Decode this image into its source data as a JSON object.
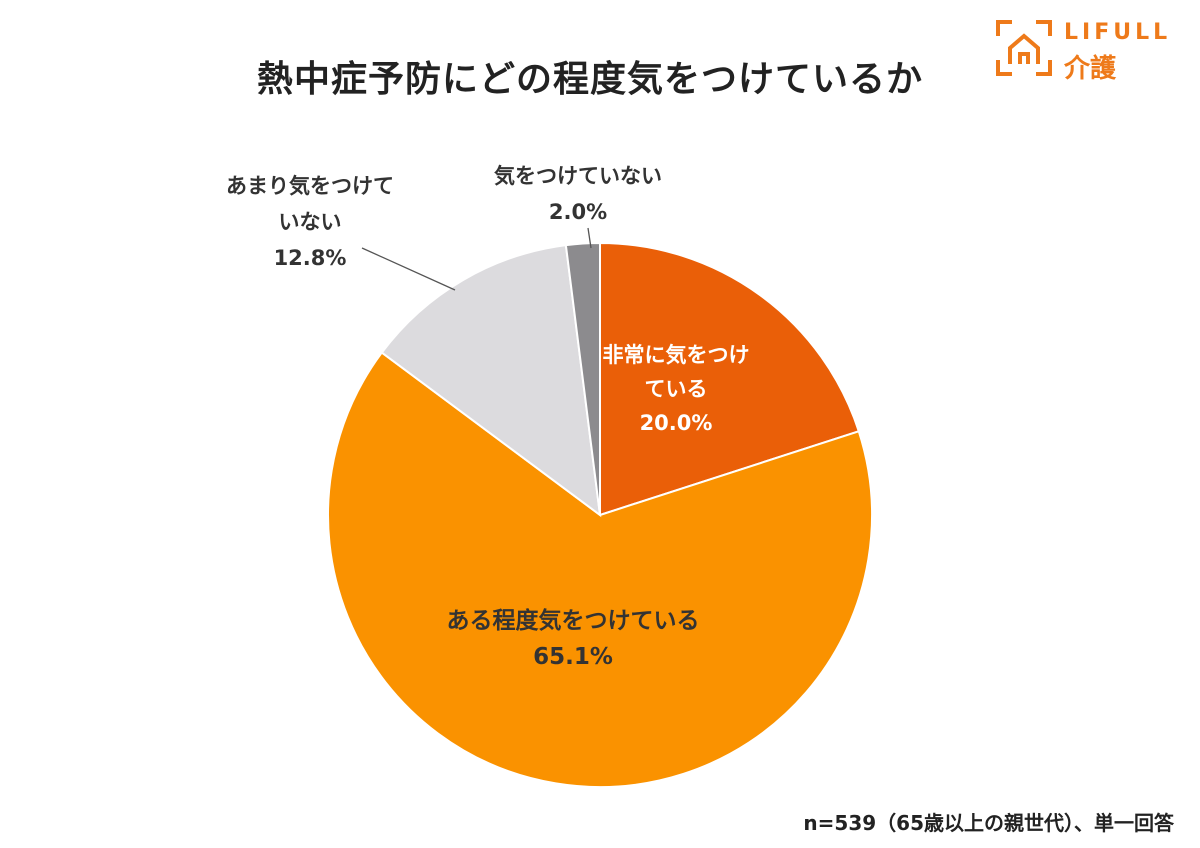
{
  "title": "熱中症予防にどの程度気をつけているか",
  "logo": {
    "text_en": "LIFULL",
    "text_jp": "介護"
  },
  "footnote": "n=539（65歳以上の親世代）、単一回答",
  "chart_data": {
    "type": "pie",
    "title": "熱中症予防にどの程度気をつけているか",
    "start_angle_deg": 0,
    "direction": "clockwise",
    "slices": [
      {
        "label_lines": [
          "非常に気をつけ",
          "ている"
        ],
        "label": "非常に気をつけている",
        "value": 20.0,
        "value_text": "20.0%",
        "color": "#ea5f08",
        "text_color": "#ffffff"
      },
      {
        "label_lines": [
          "ある程度気をつけている"
        ],
        "label": "ある程度気をつけている",
        "value": 65.1,
        "value_text": "65.1%",
        "color": "#fa9200",
        "text_color": "#333333"
      },
      {
        "label_lines": [
          "あまり気をつけて",
          "いない"
        ],
        "label": "あまり気をつけていない",
        "value": 12.8,
        "value_text": "12.8%",
        "color": "#dcdbde",
        "text_color": "#333333"
      },
      {
        "label_lines": [
          "気をつけていない"
        ],
        "label": "気をつけていない",
        "value": 2.0,
        "value_text": "2.0%",
        "color": "#8c8b8e",
        "text_color": "#333333"
      }
    ]
  }
}
